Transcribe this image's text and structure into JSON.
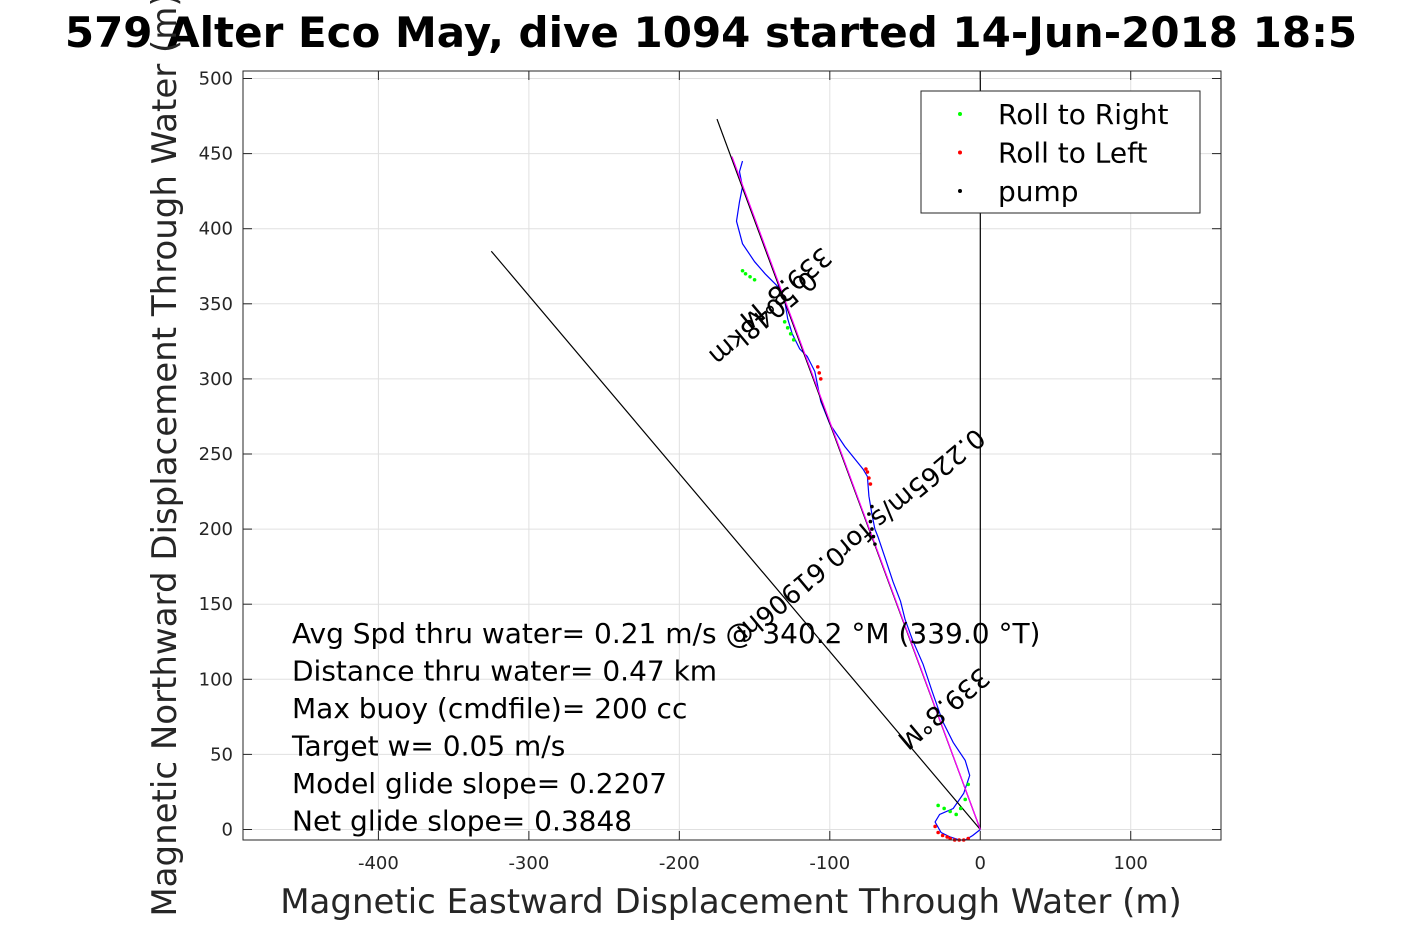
{
  "chart_data": {
    "type": "line",
    "title": "579 Alter Eco May, dive 1094 started 14-Jun-2018 18:5",
    "xlabel": "Magnetic Eastward Displacement Through Water (m)",
    "ylabel": "Magnetic Northward Displacement Through Water (m)",
    "xlim": [
      -490,
      160
    ],
    "ylim": [
      -7,
      505
    ],
    "xticks": [
      -400,
      -300,
      -200,
      -100,
      0,
      100
    ],
    "yticks": [
      0,
      50,
      100,
      150,
      200,
      250,
      300,
      350,
      400,
      450,
      500
    ],
    "grid": true,
    "legend_position": "top-right",
    "legend": [
      {
        "label": "Roll to Right",
        "color": "#00ff00"
      },
      {
        "label": "Roll to Left",
        "color": "#ff0000"
      },
      {
        "label": "pump",
        "color": "#000000"
      }
    ],
    "series": [
      {
        "kind": "track",
        "color": "#0000ff",
        "x": [
          0,
          -5,
          -10,
          -14,
          -20,
          -26,
          -30,
          -27,
          -18,
          -11,
          -7,
          -10,
          -18,
          -25,
          -32,
          -38,
          -45,
          -50,
          -53,
          -58,
          -63,
          -68,
          -70,
          -72,
          -74,
          -75,
          -78,
          -82,
          -90,
          -100,
          -106,
          -108,
          -110,
          -115,
          -120,
          -125,
          -128,
          -130,
          -133,
          -138,
          -143,
          -150,
          -158,
          -162,
          -160,
          -158,
          -160,
          -158
        ],
        "y": [
          0,
          -4,
          -7,
          -7,
          -5,
          -2,
          5,
          10,
          14,
          24,
          36,
          46,
          58,
          72,
          92,
          110,
          126,
          140,
          152,
          165,
          180,
          195,
          200,
          210,
          222,
          235,
          240,
          245,
          255,
          270,
          285,
          295,
          305,
          315,
          320,
          330,
          340,
          352,
          360,
          365,
          370,
          378,
          390,
          405,
          418,
          428,
          438,
          445
        ]
      },
      {
        "kind": "heading-line",
        "color": "#000000",
        "x": [
          0,
          -175
        ],
        "y": [
          0,
          473
        ]
      },
      {
        "kind": "heading-line",
        "color": "#000000",
        "x": [
          -325,
          0
        ],
        "y": [
          385,
          0
        ]
      },
      {
        "kind": "heading-line",
        "color": "#000000",
        "x": [
          0,
          0
        ],
        "y": [
          0,
          505
        ]
      },
      {
        "kind": "rhumb-line",
        "color": "#ff00ff",
        "x": [
          0,
          -165
        ],
        "y": [
          0,
          448
        ]
      }
    ],
    "markers": {
      "roll_right": {
        "color": "#00ff00",
        "x": [
          -8,
          -10,
          -13,
          -16,
          -20,
          -24,
          -28,
          -124,
          -126,
          -128,
          -130,
          -150,
          -153,
          -156,
          -158
        ],
        "y": [
          30,
          20,
          14,
          10,
          12,
          14,
          16,
          326,
          330,
          334,
          338,
          366,
          368,
          370,
          372
        ]
      },
      "roll_left": {
        "color": "#ff0000",
        "x": [
          -30,
          -28,
          -25,
          -22,
          -20,
          -17,
          -14,
          -11,
          -8,
          -106,
          -107,
          -108,
          -73,
          -74,
          -75,
          -76
        ],
        "y": [
          2,
          -2,
          -4,
          -5,
          -6,
          -7,
          -7,
          -7,
          -6,
          300,
          304,
          308,
          230,
          234,
          238,
          240
        ]
      },
      "pump": {
        "color": "#000000",
        "x": [
          -70,
          -71,
          -72,
          -73,
          -74,
          -72
        ],
        "y": [
          190,
          195,
          200,
          205,
          210,
          215
        ]
      }
    },
    "annotations": [
      "Avg Spd thru water=  0.21 m/s @ 340.2 °M (339.0 °T)",
      "Distance thru water=  0.47 km",
      "Max buoy (cmdfile)= 200 cc",
      "Target w= 0.05 m/s",
      "Model glide slope= 0.2207",
      "Net glide slope= 0.3848"
    ],
    "track_labels": [
      {
        "text": "339.8°M",
        "x": -133,
        "y": 365,
        "angle": -70
      },
      {
        "text": "0.5048km",
        "x": -148,
        "y": 345,
        "angle": -70
      },
      {
        "text": "0.2265m/s for0.61906hr",
        "x": -84,
        "y": 200,
        "angle": -70
      },
      {
        "text": "339.8°M",
        "x": -28,
        "y": 85,
        "angle": -70
      }
    ]
  }
}
